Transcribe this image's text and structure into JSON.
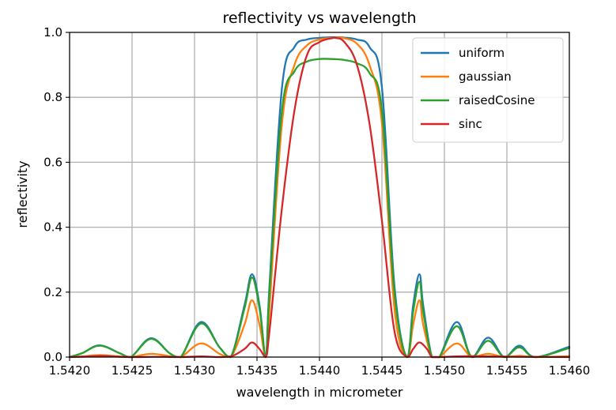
{
  "chart_data": {
    "type": "line",
    "title": "reflectivity vs wavelength",
    "xlabel": "wavelength in micrometer",
    "ylabel": "reflectivity",
    "xlim": [
      1.542,
      1.546
    ],
    "ylim": [
      0.0,
      1.0
    ],
    "xticks": [
      "1.5420",
      "1.5425",
      "1.5430",
      "1.5435",
      "1.5440",
      "1.5445",
      "1.5450",
      "1.5455",
      "1.5460"
    ],
    "yticks": [
      "0.0",
      "0.2",
      "0.4",
      "0.6",
      "0.8",
      "1.0"
    ],
    "grid": true,
    "legend_position": "top-right",
    "series": [
      {
        "name": "uniform",
        "color": "#1f77b4",
        "x": [
          1.542,
          1.5421,
          1.54224,
          1.5424,
          1.54249,
          1.54265,
          1.5428,
          1.54289,
          1.54305,
          1.5432,
          1.54329,
          1.5434,
          1.54346,
          1.54352,
          1.54357,
          1.5436,
          1.5437,
          1.5438,
          1.5439,
          1.544,
          1.5441,
          1.54415,
          1.5442,
          1.5443,
          1.5444,
          1.5445,
          1.5446,
          1.5447,
          1.54475,
          1.5448,
          1.54483,
          1.5449,
          1.54496,
          1.5451,
          1.54522,
          1.54535,
          1.54548,
          1.5456,
          1.54573,
          1.546
        ],
        "y": [
          0.0,
          0.012,
          0.036,
          0.012,
          0.0,
          0.058,
          0.012,
          0.0,
          0.108,
          0.03,
          0.0,
          0.16,
          0.255,
          0.16,
          0.0,
          0.22,
          0.83,
          0.955,
          0.978,
          0.983,
          0.985,
          0.985,
          0.984,
          0.978,
          0.955,
          0.83,
          0.22,
          0.0,
          0.16,
          0.255,
          0.16,
          0.0,
          0.0,
          0.108,
          0.0,
          0.06,
          0.0,
          0.035,
          0.0,
          0.032
        ]
      },
      {
        "name": "gaussian",
        "color": "#ff7f0e",
        "x": [
          1.542,
          1.5421,
          1.54224,
          1.5424,
          1.54249,
          1.54265,
          1.5428,
          1.54289,
          1.54305,
          1.5432,
          1.54329,
          1.5434,
          1.54346,
          1.54352,
          1.54357,
          1.5436,
          1.5437,
          1.5438,
          1.5439,
          1.544,
          1.5441,
          1.54415,
          1.5442,
          1.5443,
          1.5444,
          1.5445,
          1.5446,
          1.5447,
          1.54475,
          1.5448,
          1.54483,
          1.5449,
          1.54496,
          1.5451,
          1.54522,
          1.54535,
          1.54548,
          1.5456,
          1.54573,
          1.546
        ],
        "y": [
          0.0,
          0.002,
          0.006,
          0.002,
          0.0,
          0.01,
          0.003,
          0.0,
          0.042,
          0.01,
          0.0,
          0.1,
          0.175,
          0.1,
          0.0,
          0.15,
          0.72,
          0.9,
          0.96,
          0.978,
          0.983,
          0.984,
          0.982,
          0.965,
          0.9,
          0.72,
          0.15,
          0.0,
          0.1,
          0.175,
          0.1,
          0.0,
          0.0,
          0.042,
          0.0,
          0.01,
          0.0,
          0.004,
          0.0,
          0.003
        ]
      },
      {
        "name": "raisedCosine",
        "color": "#2ca02c",
        "x": [
          1.542,
          1.5421,
          1.54224,
          1.5424,
          1.54249,
          1.54265,
          1.5428,
          1.54289,
          1.54305,
          1.5432,
          1.54329,
          1.5434,
          1.54346,
          1.54352,
          1.54357,
          1.5436,
          1.5437,
          1.5438,
          1.5439,
          1.544,
          1.5441,
          1.54415,
          1.5442,
          1.5443,
          1.5444,
          1.5445,
          1.5446,
          1.5447,
          1.54475,
          1.5448,
          1.54483,
          1.5449,
          1.54496,
          1.5451,
          1.54522,
          1.54535,
          1.54548,
          1.5456,
          1.54573,
          1.546
        ],
        "y": [
          0.0,
          0.012,
          0.035,
          0.012,
          0.0,
          0.056,
          0.012,
          0.0,
          0.103,
          0.03,
          0.0,
          0.15,
          0.245,
          0.15,
          0.0,
          0.2,
          0.76,
          0.88,
          0.91,
          0.918,
          0.918,
          0.917,
          0.915,
          0.905,
          0.875,
          0.76,
          0.2,
          0.0,
          0.14,
          0.232,
          0.14,
          0.0,
          0.0,
          0.095,
          0.0,
          0.05,
          0.0,
          0.03,
          0.0,
          0.028
        ]
      },
      {
        "name": "sinc",
        "color": "#d62728",
        "x": [
          1.542,
          1.54215,
          1.54225,
          1.54235,
          1.5425,
          1.5427,
          1.5429,
          1.54305,
          1.5432,
          1.5433,
          1.5434,
          1.54346,
          1.54352,
          1.54357,
          1.5436,
          1.5437,
          1.5438,
          1.5439,
          1.544,
          1.5441,
          1.54413,
          1.5442,
          1.5443,
          1.5444,
          1.5445,
          1.5446,
          1.5447,
          1.54475,
          1.5448,
          1.54486,
          1.5449,
          1.54496,
          1.5452,
          1.5456,
          1.546
        ],
        "y": [
          0.0,
          0.002,
          0.004,
          0.002,
          0.0,
          0.001,
          0.0,
          0.002,
          0.0,
          0.003,
          0.025,
          0.045,
          0.025,
          0.0,
          0.08,
          0.46,
          0.76,
          0.93,
          0.97,
          0.982,
          0.983,
          0.97,
          0.9,
          0.72,
          0.42,
          0.08,
          0.0,
          0.025,
          0.045,
          0.025,
          0.0,
          0.0,
          0.003,
          0.001,
          0.0
        ]
      }
    ]
  }
}
